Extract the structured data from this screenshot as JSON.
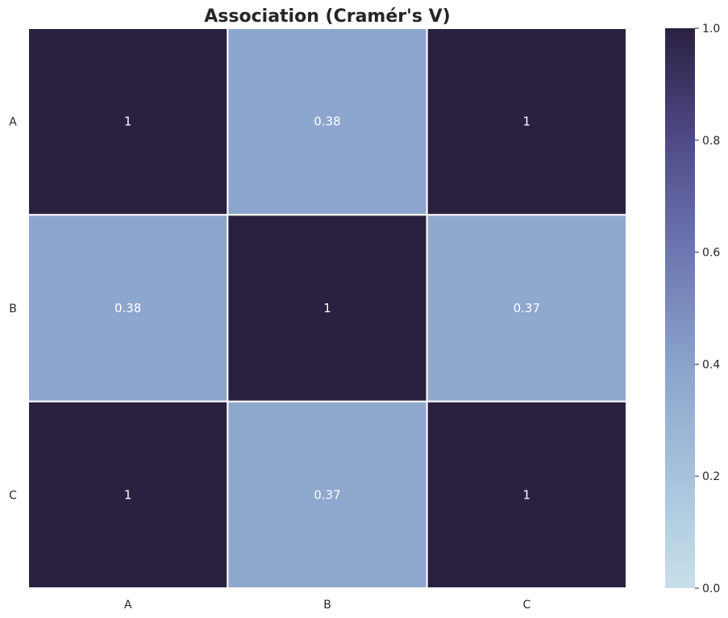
{
  "chart_data": {
    "type": "heatmap",
    "title": "Association (Cramér's V)",
    "x_categories": [
      "A",
      "B",
      "C"
    ],
    "y_categories": [
      "A",
      "B",
      "C"
    ],
    "values": [
      [
        1,
        0.38,
        1
      ],
      [
        0.38,
        1,
        0.37
      ],
      [
        1,
        0.37,
        1
      ]
    ],
    "annotations": [
      [
        "1",
        "0.38",
        "1"
      ],
      [
        "0.38",
        "1",
        "0.37"
      ],
      [
        "1",
        "0.37",
        "1"
      ]
    ],
    "colorbar": {
      "vmin": 0.0,
      "vmax": 1.0,
      "ticks": [
        0.0,
        0.2,
        0.4,
        0.6,
        0.8,
        1.0
      ],
      "tick_labels": [
        "0.0",
        "0.2",
        "0.4",
        "0.6",
        "0.8",
        "1.0"
      ]
    },
    "colors": {
      "low": "#c7e0ea",
      "mid_low": "#a6c3dc",
      "mid": "#8aa3cb",
      "mid_high": "#6d77b1",
      "high_mid": "#4f4a88",
      "high": "#2a2140",
      "cell_border": "#ffffff",
      "annotation_text": "#ffffff"
    },
    "grid": false,
    "legend": "colorbar-right"
  }
}
